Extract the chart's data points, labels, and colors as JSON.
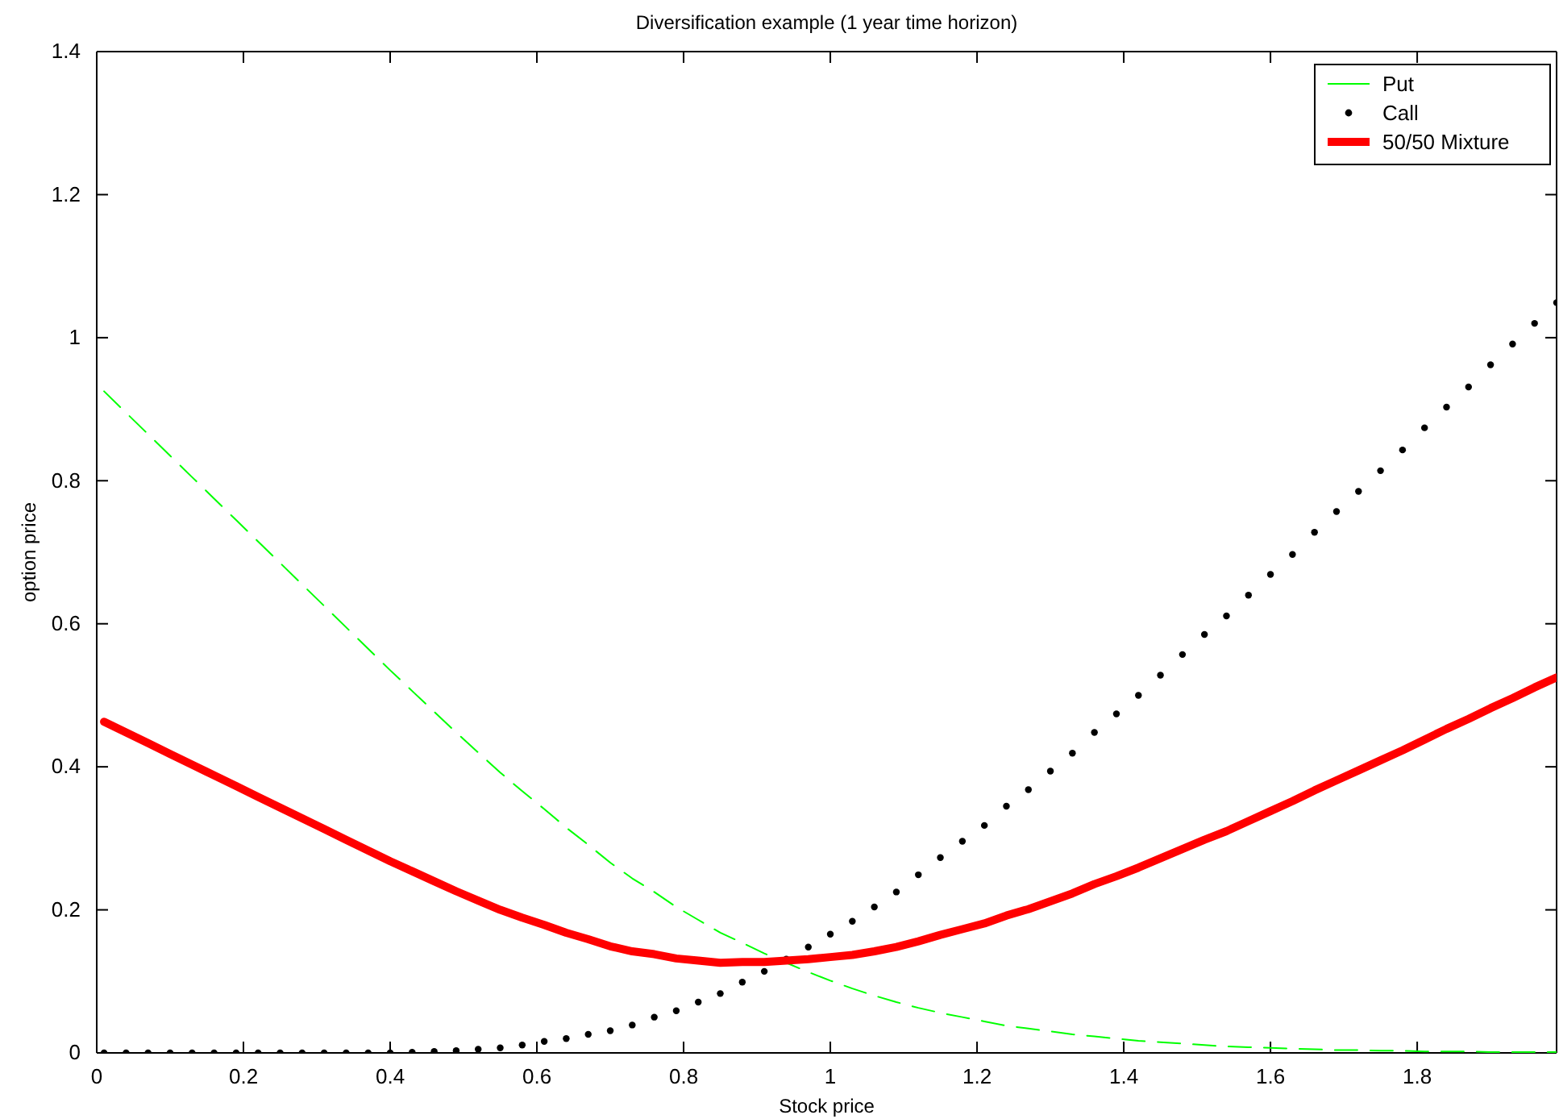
{
  "chart_data": {
    "type": "line",
    "title": "Diversification example (1 year time horizon)",
    "xlabel": "Stock price",
    "ylabel": "option price",
    "x": [
      0.01,
      0.04,
      0.07,
      0.1,
      0.13,
      0.16,
      0.19,
      0.22,
      0.25,
      0.28,
      0.31,
      0.34,
      0.37,
      0.4,
      0.43,
      0.46,
      0.49,
      0.52,
      0.55,
      0.58,
      0.61,
      0.64,
      0.67,
      0.7,
      0.73,
      0.76,
      0.79,
      0.82,
      0.85,
      0.88,
      0.91,
      0.94,
      0.97,
      1.0,
      1.03,
      1.06,
      1.09,
      1.12,
      1.15,
      1.18,
      1.21,
      1.24,
      1.27,
      1.3,
      1.33,
      1.36,
      1.39,
      1.42,
      1.45,
      1.48,
      1.51,
      1.54,
      1.57,
      1.6,
      1.63,
      1.66,
      1.69,
      1.72,
      1.75,
      1.78,
      1.81,
      1.84,
      1.87,
      1.9,
      1.93,
      1.96,
      1.99
    ],
    "series": [
      {
        "name": "Put",
        "line_style": "dashed",
        "color": "#00ff00",
        "values": [
          0.925,
          0.895,
          0.865,
          0.835,
          0.805,
          0.775,
          0.745,
          0.715,
          0.685,
          0.655,
          0.625,
          0.595,
          0.565,
          0.535,
          0.506,
          0.477,
          0.448,
          0.42,
          0.392,
          0.366,
          0.341,
          0.315,
          0.291,
          0.266,
          0.244,
          0.225,
          0.204,
          0.186,
          0.168,
          0.154,
          0.139,
          0.126,
          0.113,
          0.101,
          0.09,
          0.08,
          0.071,
          0.063,
          0.056,
          0.05,
          0.044,
          0.038,
          0.034,
          0.03,
          0.026,
          0.023,
          0.02,
          0.017,
          0.015,
          0.013,
          0.011,
          0.009,
          0.008,
          0.007,
          0.006,
          0.005,
          0.004,
          0.004,
          0.003,
          0.003,
          0.002,
          0.002,
          0.002,
          0.001,
          0.001,
          0.001,
          0.001
        ]
      },
      {
        "name": "Call",
        "type": "scatter",
        "marker": "circle",
        "color": "#000000",
        "values": [
          0,
          0,
          0,
          0,
          0,
          0,
          0,
          0,
          0,
          0,
          0,
          0,
          0,
          0,
          0.001,
          0.002,
          0.003,
          0.005,
          0.007,
          0.011,
          0.016,
          0.02,
          0.026,
          0.031,
          0.039,
          0.05,
          0.059,
          0.071,
          0.083,
          0.099,
          0.114,
          0.131,
          0.148,
          0.166,
          0.184,
          0.204,
          0.225,
          0.249,
          0.273,
          0.296,
          0.318,
          0.345,
          0.368,
          0.394,
          0.419,
          0.448,
          0.474,
          0.5,
          0.528,
          0.557,
          0.585,
          0.611,
          0.64,
          0.669,
          0.697,
          0.728,
          0.757,
          0.785,
          0.814,
          0.843,
          0.874,
          0.903,
          0.931,
          0.962,
          0.991,
          1.02,
          1.049
        ]
      },
      {
        "name": "50/50 Mixture",
        "line_style": "solid",
        "color": "#ff0000",
        "values": [
          0.463,
          0.448,
          0.433,
          0.418,
          0.403,
          0.388,
          0.373,
          0.358,
          0.343,
          0.328,
          0.313,
          0.298,
          0.283,
          0.268,
          0.254,
          0.24,
          0.226,
          0.213,
          0.2,
          0.189,
          0.179,
          0.168,
          0.159,
          0.149,
          0.142,
          0.138,
          0.132,
          0.129,
          0.126,
          0.127,
          0.127,
          0.129,
          0.131,
          0.134,
          0.137,
          0.142,
          0.148,
          0.156,
          0.165,
          0.173,
          0.181,
          0.192,
          0.201,
          0.212,
          0.223,
          0.236,
          0.247,
          0.259,
          0.272,
          0.285,
          0.298,
          0.31,
          0.324,
          0.338,
          0.352,
          0.367,
          0.381,
          0.395,
          0.409,
          0.423,
          0.438,
          0.453,
          0.467,
          0.482,
          0.496,
          0.511,
          0.525
        ]
      }
    ],
    "xlim": [
      0,
      1.99
    ],
    "xticks": [
      0,
      0.2,
      0.4,
      0.6,
      0.8,
      1,
      1.2,
      1.4,
      1.6,
      1.8
    ],
    "ylim": [
      0,
      1.4
    ],
    "yticks": [
      0,
      0.2,
      0.4,
      0.6,
      0.8,
      1,
      1.2,
      1.4
    ],
    "legend": "top right",
    "grid": false
  }
}
